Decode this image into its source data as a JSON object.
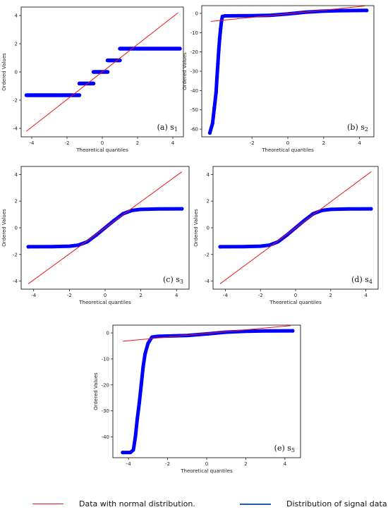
{
  "figure": {
    "legend": [
      {
        "label": "Data with normal distribution.",
        "color": "#e31a1c",
        "kind": "line"
      },
      {
        "label": "Distribution of signal data.",
        "color": "#1f5fa8",
        "kind": "line"
      }
    ]
  },
  "chart_data": [
    {
      "type": "scatter",
      "panel_label": "(a)  s",
      "panel_sub": "1",
      "xlabel": "Theoretical quantiles",
      "ylabel": "Ordered Values",
      "xlim": [
        -4.6,
        4.6
      ],
      "ylim": [
        -4.6,
        4.6
      ],
      "xticks": [
        -4,
        -2,
        0,
        2,
        4
      ],
      "yticks": [
        -4,
        -2,
        0,
        2,
        4
      ],
      "fit_line": [
        [
          -4.3,
          -4.2
        ],
        [
          4.3,
          4.2
        ]
      ],
      "segments": [
        [
          -4.3,
          -1.3,
          -1.65
        ],
        [
          -1.3,
          -0.5,
          -0.82
        ],
        [
          -0.5,
          0.3,
          0.0
        ],
        [
          0.3,
          1.0,
          0.82
        ],
        [
          1.0,
          4.4,
          1.65
        ]
      ],
      "colors": {
        "points": "#0000ff",
        "line": "#e31a1c"
      }
    },
    {
      "type": "scatter",
      "panel_label": "(b) s",
      "panel_sub": "2",
      "xlabel": "Theoretical quantiles",
      "ylabel": "Ordered Values",
      "xlim": [
        -4.8,
        4.8
      ],
      "ylim": [
        -64,
        4
      ],
      "xticks": [
        -2,
        0,
        2,
        4
      ],
      "yticks": [
        0,
        -10,
        -20,
        -30,
        -40,
        -50,
        -60
      ],
      "fit_line": [
        [
          -4.3,
          -4.2
        ],
        [
          4.3,
          3.8
        ]
      ],
      "curve": [
        [
          -4.35,
          -62
        ],
        [
          -4.2,
          -57
        ],
        [
          -4.1,
          -49
        ],
        [
          -4.0,
          -41
        ],
        [
          -3.95,
          -33
        ],
        [
          -3.9,
          -26
        ],
        [
          -3.85,
          -19
        ],
        [
          -3.8,
          -13
        ],
        [
          -3.75,
          -8
        ],
        [
          -3.7,
          -4
        ],
        [
          -3.65,
          -1.6
        ],
        [
          -3.5,
          -1.3
        ],
        [
          -2,
          -1.2
        ],
        [
          -1,
          -1.0
        ],
        [
          0,
          -0.3
        ],
        [
          1,
          0.6
        ],
        [
          2,
          1.2
        ],
        [
          3,
          1.4
        ],
        [
          4.4,
          1.5
        ]
      ],
      "colors": {
        "points": "#0000ff",
        "line": "#e31a1c"
      }
    },
    {
      "type": "scatter",
      "panel_label": "(c) s",
      "panel_sub": "3",
      "xlabel": "Theoretical quantiles",
      "ylabel": "Ordered Values",
      "xlim": [
        -4.7,
        4.7
      ],
      "ylim": [
        -4.6,
        4.6
      ],
      "xticks": [
        -4,
        -2,
        0,
        2,
        4
      ],
      "yticks": [
        -4,
        -2,
        0,
        2,
        4
      ],
      "fit_line": [
        [
          -4.3,
          -4.2
        ],
        [
          4.3,
          4.2
        ]
      ],
      "curve": [
        [
          -4.3,
          -1.42
        ],
        [
          -3,
          -1.41
        ],
        [
          -2,
          -1.38
        ],
        [
          -1.5,
          -1.3
        ],
        [
          -1,
          -1.05
        ],
        [
          -0.5,
          -0.55
        ],
        [
          0,
          0
        ],
        [
          0.5,
          0.55
        ],
        [
          1,
          1.05
        ],
        [
          1.5,
          1.3
        ],
        [
          2,
          1.38
        ],
        [
          3,
          1.41
        ],
        [
          4.3,
          1.42
        ]
      ],
      "colors": {
        "points": "#0000ff",
        "line": "#e31a1c"
      }
    },
    {
      "type": "scatter",
      "panel_label": "(d) s",
      "panel_sub": "4",
      "xlabel": "Theoretical quantiles",
      "ylabel": "Ordered Values",
      "xlim": [
        -4.7,
        4.7
      ],
      "ylim": [
        -4.6,
        4.6
      ],
      "xticks": [
        -4,
        -2,
        0,
        2,
        4
      ],
      "yticks": [
        -4,
        -2,
        0,
        2,
        4
      ],
      "fit_line": [
        [
          -4.3,
          -4.2
        ],
        [
          4.3,
          4.2
        ]
      ],
      "curve": [
        [
          -4.3,
          -1.42
        ],
        [
          -3,
          -1.41
        ],
        [
          -2,
          -1.38
        ],
        [
          -1.5,
          -1.3
        ],
        [
          -1,
          -1.05
        ],
        [
          -0.5,
          -0.55
        ],
        [
          0,
          0
        ],
        [
          0.5,
          0.55
        ],
        [
          1,
          1.05
        ],
        [
          1.5,
          1.3
        ],
        [
          2,
          1.38
        ],
        [
          3,
          1.41
        ],
        [
          4.3,
          1.42
        ]
      ],
      "colors": {
        "points": "#0000ff",
        "line": "#e31a1c"
      }
    },
    {
      "type": "scatter",
      "panel_label": "(e) s",
      "panel_sub": "5",
      "xlabel": "Theoretical quantiles",
      "ylabel": "Ordered Values",
      "xlim": [
        -4.8,
        4.8
      ],
      "ylim": [
        -48,
        3
      ],
      "xticks": [
        -4,
        -2,
        0,
        2,
        4
      ],
      "yticks": [
        0,
        -10,
        -20,
        -30,
        -40
      ],
      "fit_line": [
        [
          -4.3,
          -3.2
        ],
        [
          4.3,
          2.8
        ]
      ],
      "curve": [
        [
          -4.3,
          -46
        ],
        [
          -3.9,
          -46
        ],
        [
          -3.75,
          -45
        ],
        [
          -3.65,
          -40
        ],
        [
          -3.55,
          -33
        ],
        [
          -3.45,
          -27
        ],
        [
          -3.35,
          -20
        ],
        [
          -3.25,
          -13
        ],
        [
          -3.15,
          -8
        ],
        [
          -3.0,
          -4
        ],
        [
          -2.8,
          -1.6
        ],
        [
          -2.5,
          -1.3
        ],
        [
          -1,
          -1.0
        ],
        [
          0,
          -0.4
        ],
        [
          1,
          0.3
        ],
        [
          2,
          0.6
        ],
        [
          3,
          0.75
        ],
        [
          4.4,
          0.8
        ]
      ],
      "colors": {
        "points": "#0000ff",
        "line": "#e31a1c"
      }
    }
  ]
}
